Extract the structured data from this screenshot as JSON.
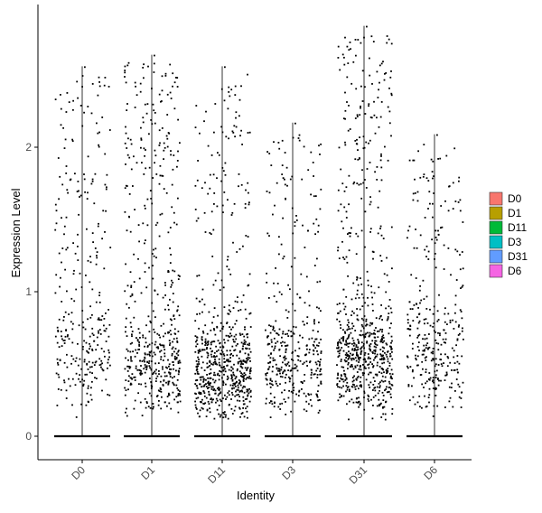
{
  "chart_data": {
    "type": "scatter",
    "subtype": "violin-jitter",
    "xlabel": "Identity",
    "ylabel": "Expression Level",
    "categories": [
      "D0",
      "D1",
      "D11",
      "D3",
      "D31",
      "D6"
    ],
    "ylim": [
      -0.15,
      2.85
    ],
    "yticks": [
      0,
      1,
      2
    ],
    "grid": false,
    "legend": {
      "position": "right",
      "entries": [
        {
          "label": "D0",
          "color": "#F8766D"
        },
        {
          "label": "D1",
          "color": "#B79F00"
        },
        {
          "label": "D11",
          "color": "#00BA38"
        },
        {
          "label": "D3",
          "color": "#00BFC4"
        },
        {
          "label": "D31",
          "color": "#619CFF"
        },
        {
          "label": "D6",
          "color": "#F564E3"
        }
      ]
    },
    "groups": [
      {
        "name": "D0",
        "max": 2.56,
        "n_nonzero": 300,
        "dense_low": 0.55,
        "low_weight": 0.45
      },
      {
        "name": "D1",
        "max": 2.64,
        "n_nonzero": 520,
        "dense_low": 0.5,
        "low_weight": 0.5
      },
      {
        "name": "D11",
        "max": 2.56,
        "n_nonzero": 650,
        "dense_low": 0.45,
        "low_weight": 0.72
      },
      {
        "name": "D3",
        "max": 2.17,
        "n_nonzero": 380,
        "dense_low": 0.5,
        "low_weight": 0.6
      },
      {
        "name": "D31",
        "max": 2.84,
        "n_nonzero": 720,
        "dense_low": 0.55,
        "low_weight": 0.62
      },
      {
        "name": "D6",
        "max": 2.09,
        "n_nonzero": 330,
        "dense_low": 0.55,
        "low_weight": 0.5
      }
    ]
  }
}
